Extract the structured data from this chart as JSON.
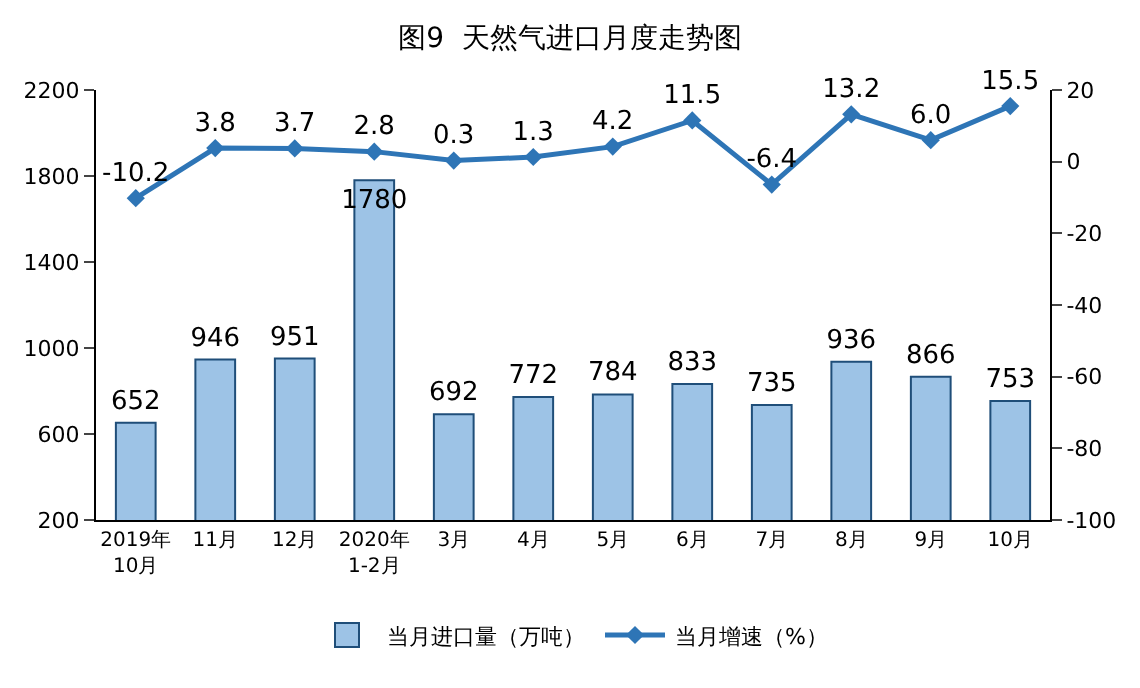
{
  "chart_data": {
    "type": "bar",
    "title": "图9  天然气进口月度走势图",
    "categories": [
      "2019年\n10月",
      "11月",
      "12月",
      "2020年\n1-2月",
      "3月",
      "4月",
      "5月",
      "6月",
      "7月",
      "8月",
      "9月",
      "10月"
    ],
    "series": [
      {
        "name": "当月进口量（万吨）",
        "color": "#9dc3e6",
        "values": [
          652,
          946,
          951,
          1780,
          692,
          772,
          784,
          833,
          735,
          936,
          866,
          753
        ]
      },
      {
        "name": "当月增速（%）",
        "type": "line",
        "axis": "y2",
        "color": "#2e75b6",
        "values": [
          -10.2,
          3.8,
          3.7,
          2.8,
          0.3,
          1.3,
          4.2,
          11.5,
          -6.4,
          13.2,
          6.0,
          15.5
        ],
        "value_labels": [
          "-10.2",
          "3.8",
          "3.7",
          "2.8",
          "0.3",
          "1.3",
          "4.2",
          "11.5",
          "-6.4",
          "13.2",
          "6.0",
          "15.5"
        ]
      }
    ],
    "ylim": [
      200,
      2200
    ],
    "yticks": [
      200,
      600,
      1000,
      1400,
      1800,
      2200
    ],
    "y2lim": [
      -100,
      20
    ],
    "y2ticks": [
      -100,
      -80,
      -60,
      -40,
      -20,
      0,
      20
    ],
    "data_labels": true,
    "legend": "bottom",
    "marker": "diamond",
    "line_style": "solid"
  }
}
